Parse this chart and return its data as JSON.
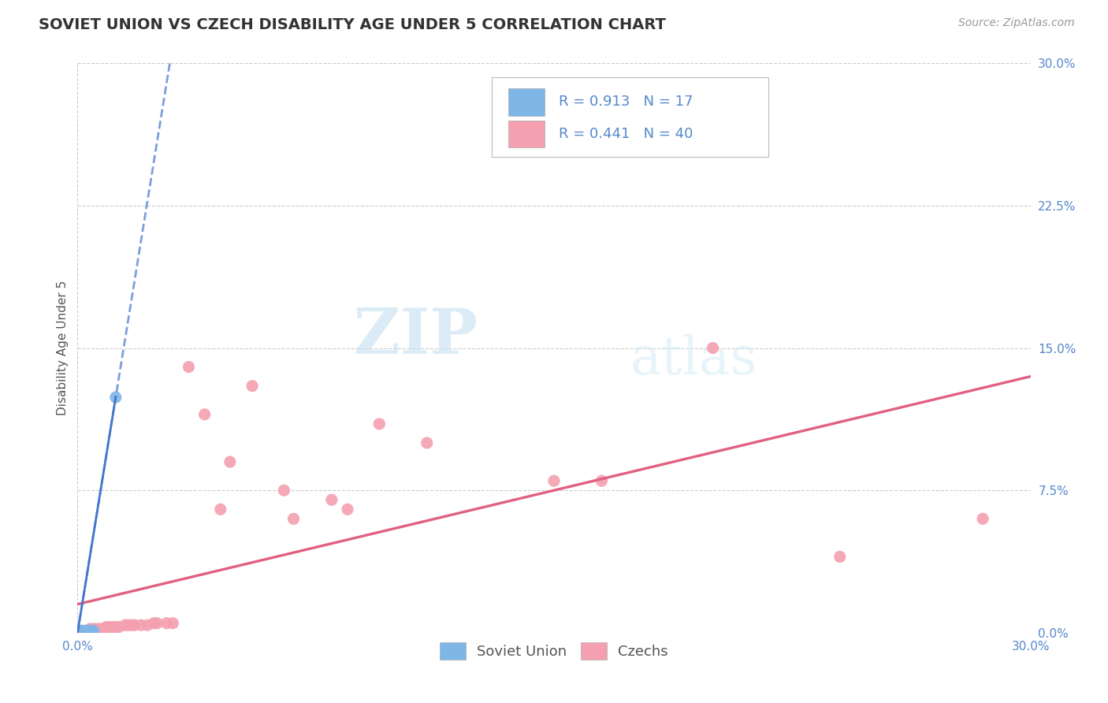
{
  "title": "SOVIET UNION VS CZECH DISABILITY AGE UNDER 5 CORRELATION CHART",
  "source": "Source: ZipAtlas.com",
  "ylabel": "Disability Age Under 5",
  "xlim": [
    0.0,
    0.3
  ],
  "ylim": [
    0.0,
    0.3
  ],
  "xtick_vals": [
    0.0,
    0.3
  ],
  "xtick_labels": [
    "0.0%",
    "30.0%"
  ],
  "ytick_vals": [
    0.0,
    0.075,
    0.15,
    0.225,
    0.3
  ],
  "ytick_labels": [
    "0.0%",
    "7.5%",
    "15.0%",
    "22.5%",
    "30.0%"
  ],
  "soviet_color": "#7EB6E8",
  "soviet_line_color": "#4477CC",
  "czech_color": "#F4A0B0",
  "czech_line_color": "#E06080",
  "soviet_R": 0.913,
  "soviet_N": 17,
  "czech_R": 0.441,
  "czech_N": 40,
  "watermark_zip": "ZIP",
  "watermark_atlas": "atlas",
  "bg_color": "#ffffff",
  "grid_color": "#cccccc",
  "soviet_scatter": [
    [
      0.0005,
      0.0005
    ],
    [
      0.0005,
      0.0008
    ],
    [
      0.0008,
      0.0005
    ],
    [
      0.001,
      0.001
    ],
    [
      0.001,
      0.0005
    ],
    [
      0.001,
      0.0005
    ],
    [
      0.0015,
      0.001
    ],
    [
      0.002,
      0.001
    ],
    [
      0.002,
      0.0005
    ],
    [
      0.002,
      0.0008
    ],
    [
      0.0025,
      0.001
    ],
    [
      0.003,
      0.001
    ],
    [
      0.003,
      0.0005
    ],
    [
      0.004,
      0.001
    ],
    [
      0.004,
      0.0005
    ],
    [
      0.005,
      0.001
    ],
    [
      0.012,
      0.124
    ]
  ],
  "czech_scatter": [
    [
      0.0005,
      0.0005
    ],
    [
      0.001,
      0.001
    ],
    [
      0.002,
      0.001
    ],
    [
      0.003,
      0.001
    ],
    [
      0.004,
      0.002
    ],
    [
      0.005,
      0.002
    ],
    [
      0.006,
      0.002
    ],
    [
      0.007,
      0.002
    ],
    [
      0.008,
      0.002
    ],
    [
      0.009,
      0.003
    ],
    [
      0.01,
      0.003
    ],
    [
      0.011,
      0.003
    ],
    [
      0.012,
      0.003
    ],
    [
      0.013,
      0.003
    ],
    [
      0.015,
      0.004
    ],
    [
      0.016,
      0.004
    ],
    [
      0.017,
      0.004
    ],
    [
      0.018,
      0.004
    ],
    [
      0.02,
      0.004
    ],
    [
      0.022,
      0.004
    ],
    [
      0.024,
      0.005
    ],
    [
      0.025,
      0.005
    ],
    [
      0.028,
      0.005
    ],
    [
      0.03,
      0.005
    ],
    [
      0.035,
      0.14
    ],
    [
      0.04,
      0.115
    ],
    [
      0.045,
      0.065
    ],
    [
      0.048,
      0.09
    ],
    [
      0.055,
      0.13
    ],
    [
      0.065,
      0.075
    ],
    [
      0.068,
      0.06
    ],
    [
      0.08,
      0.07
    ],
    [
      0.085,
      0.065
    ],
    [
      0.095,
      0.11
    ],
    [
      0.11,
      0.1
    ],
    [
      0.15,
      0.08
    ],
    [
      0.165,
      0.08
    ],
    [
      0.2,
      0.15
    ],
    [
      0.24,
      0.04
    ],
    [
      0.285,
      0.06
    ]
  ],
  "soviet_solid_line": [
    [
      0.012,
      0.124
    ],
    [
      0.0,
      0.0
    ]
  ],
  "soviet_dashed_line": [
    [
      0.0,
      0.0
    ],
    [
      -0.005,
      0.3
    ]
  ],
  "czech_line_x": [
    0.0,
    0.3
  ],
  "czech_line_y": [
    0.015,
    0.135
  ],
  "title_fontsize": 14,
  "label_fontsize": 11,
  "tick_fontsize": 11,
  "legend_fontsize": 13,
  "source_fontsize": 10,
  "scatter_size": 120,
  "line_width": 2.0
}
